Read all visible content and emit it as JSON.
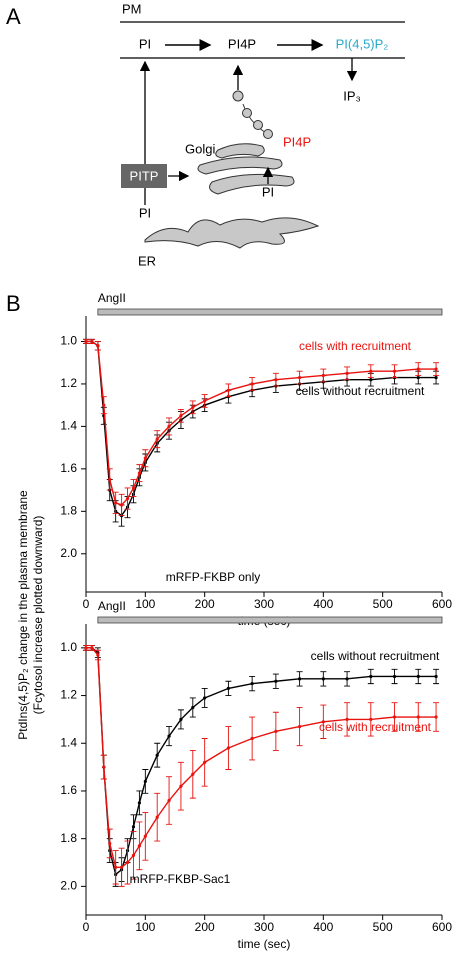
{
  "panel_labels": [
    "A",
    "B"
  ],
  "diagram": {
    "pm_label": "PM",
    "pi": "PI",
    "pi4p": "PI4P",
    "pip2": "PI(4,5)P₂",
    "ip3": "IP₃",
    "golgi": "Golgi",
    "golgi_pi4p": "PI4P",
    "golgi_pi": "PI",
    "pitp": "PITP",
    "er_pi": "PI",
    "er": "ER"
  },
  "y_label": [
    "PtdIns(4,5)P₂ change in the plasma membrane",
    "(Fcytosol increase plotted downward)"
  ],
  "chart_data": [
    {
      "type": "line",
      "note": "mRFP-FKBP only",
      "x_label": "time (sec)",
      "stimulus": {
        "label": "AngII",
        "start": 20,
        "end": 600
      },
      "x": [
        0,
        10,
        20,
        30,
        40,
        50,
        60,
        70,
        80,
        90,
        100,
        120,
        140,
        160,
        180,
        200,
        240,
        280,
        320,
        360,
        400,
        440,
        480,
        520,
        560,
        590
      ],
      "series": [
        {
          "name": "cells without recruitment",
          "color": "#000000",
          "values": [
            1.0,
            1.0,
            1.02,
            1.35,
            1.7,
            1.8,
            1.82,
            1.78,
            1.72,
            1.64,
            1.57,
            1.48,
            1.42,
            1.37,
            1.33,
            1.3,
            1.26,
            1.23,
            1.21,
            1.2,
            1.19,
            1.18,
            1.18,
            1.17,
            1.17,
            1.17
          ],
          "errors": [
            0.01,
            0.01,
            0.02,
            0.04,
            0.05,
            0.05,
            0.05,
            0.05,
            0.04,
            0.04,
            0.04,
            0.04,
            0.04,
            0.04,
            0.03,
            0.03,
            0.03,
            0.03,
            0.03,
            0.03,
            0.03,
            0.03,
            0.03,
            0.03,
            0.03,
            0.03
          ]
        },
        {
          "name": "cells with recruitment",
          "color": "#e8130f",
          "values": [
            1.0,
            1.0,
            1.02,
            1.3,
            1.65,
            1.76,
            1.77,
            1.74,
            1.69,
            1.62,
            1.55,
            1.46,
            1.4,
            1.35,
            1.31,
            1.28,
            1.23,
            1.2,
            1.18,
            1.17,
            1.16,
            1.15,
            1.14,
            1.14,
            1.13,
            1.13
          ],
          "errors": [
            0.01,
            0.01,
            0.02,
            0.04,
            0.05,
            0.05,
            0.05,
            0.05,
            0.04,
            0.04,
            0.04,
            0.04,
            0.04,
            0.03,
            0.03,
            0.03,
            0.03,
            0.03,
            0.03,
            0.03,
            0.03,
            0.03,
            0.03,
            0.03,
            0.03,
            0.03
          ]
        }
      ],
      "xlim": [
        0,
        600
      ],
      "xticks": [
        0,
        100,
        200,
        300,
        400,
        500,
        600
      ],
      "ylim": [
        0.88,
        2.18
      ],
      "y_reversed": true,
      "yticks": [
        {
          "value": 1,
          "label": "1.0"
        },
        1.2,
        1.4,
        1.6,
        1.8,
        {
          "value": 2,
          "label": "2.0"
        }
      ]
    },
    {
      "type": "line",
      "note": "mRFP-FKBP-Sac1",
      "x_label": "time (sec)",
      "stimulus": {
        "label": "AngII",
        "start": 20,
        "end": 600
      },
      "x": [
        0,
        10,
        20,
        30,
        40,
        50,
        60,
        70,
        80,
        90,
        100,
        120,
        140,
        160,
        180,
        200,
        240,
        280,
        320,
        360,
        400,
        440,
        480,
        520,
        560,
        590
      ],
      "series": [
        {
          "name": "cells without recruitment",
          "color": "#000000",
          "values": [
            1.0,
            1.0,
            1.02,
            1.5,
            1.85,
            1.95,
            1.93,
            1.85,
            1.75,
            1.65,
            1.56,
            1.45,
            1.37,
            1.3,
            1.25,
            1.21,
            1.17,
            1.15,
            1.14,
            1.13,
            1.13,
            1.13,
            1.12,
            1.12,
            1.12,
            1.12
          ],
          "errors": [
            0.01,
            0.01,
            0.02,
            0.05,
            0.05,
            0.05,
            0.05,
            0.05,
            0.05,
            0.05,
            0.05,
            0.05,
            0.04,
            0.04,
            0.04,
            0.04,
            0.03,
            0.03,
            0.03,
            0.03,
            0.03,
            0.03,
            0.03,
            0.03,
            0.03,
            0.03
          ]
        },
        {
          "name": "cells with recruitment",
          "color": "#e8130f",
          "values": [
            1.0,
            1.0,
            1.03,
            1.5,
            1.82,
            1.92,
            1.92,
            1.9,
            1.87,
            1.83,
            1.79,
            1.71,
            1.64,
            1.58,
            1.53,
            1.48,
            1.42,
            1.38,
            1.35,
            1.33,
            1.31,
            1.3,
            1.3,
            1.29,
            1.29,
            1.29
          ],
          "errors": [
            0.01,
            0.01,
            0.02,
            0.05,
            0.06,
            0.07,
            0.08,
            0.09,
            0.1,
            0.1,
            0.1,
            0.1,
            0.1,
            0.1,
            0.1,
            0.1,
            0.09,
            0.09,
            0.08,
            0.08,
            0.07,
            0.07,
            0.07,
            0.06,
            0.06,
            0.06
          ]
        }
      ],
      "xlim": [
        0,
        600
      ],
      "xticks": [
        0,
        100,
        200,
        300,
        400,
        500,
        600
      ],
      "ylim": [
        0.9,
        2.12
      ],
      "y_reversed": true,
      "yticks": [
        {
          "value": 1,
          "label": "1.0"
        },
        1.2,
        1.4,
        1.6,
        1.8,
        {
          "value": 2,
          "label": "2.0"
        }
      ]
    }
  ]
}
